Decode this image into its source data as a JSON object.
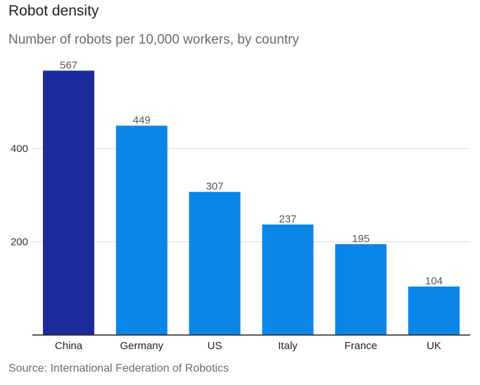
{
  "chart_data": {
    "type": "bar",
    "title": "Robot density",
    "subtitle": "Number of robots per 10,000 workers, by country",
    "source": "Source: International Federation of Robotics",
    "categories": [
      "China",
      "Germany",
      "US",
      "Italy",
      "France",
      "UK"
    ],
    "values": [
      567,
      449,
      307,
      237,
      195,
      104
    ],
    "value_labels": [
      "567",
      "449",
      "307",
      "237",
      "195",
      "104"
    ],
    "highlight_category": "China",
    "xlabel": "",
    "ylabel": "",
    "ylim": [
      0,
      600
    ],
    "yticks": [
      200,
      400
    ],
    "ytick_labels": [
      "200",
      "400"
    ],
    "grid": true,
    "colors": {
      "highlight": "#1c2b9c",
      "bar": "#0b86e8",
      "grid": "#dddddd",
      "axis": "#222222"
    }
  }
}
